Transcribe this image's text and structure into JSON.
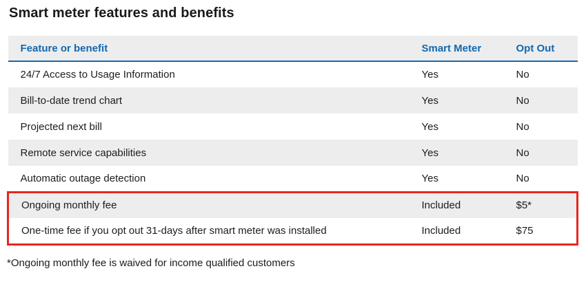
{
  "page": {
    "title": "Smart meter features and benefits",
    "footnote": "*Ongoing monthly fee is waived for income qualified customers"
  },
  "table": {
    "columns": [
      "Feature or benefit",
      "Smart Meter",
      "Opt Out"
    ],
    "rows": [
      {
        "feature": "24/7 Access to Usage Information",
        "smart_meter": "Yes",
        "opt_out": "No",
        "highlighted": false
      },
      {
        "feature": "Bill-to-date trend chart",
        "smart_meter": "Yes",
        "opt_out": "No",
        "highlighted": false
      },
      {
        "feature": "Projected next bill",
        "smart_meter": "Yes",
        "opt_out": "No",
        "highlighted": false
      },
      {
        "feature": "Remote service capabilities",
        "smart_meter": "Yes",
        "opt_out": "No",
        "highlighted": false
      },
      {
        "feature": "Automatic outage detection",
        "smart_meter": "Yes",
        "opt_out": "No",
        "highlighted": false
      },
      {
        "feature": "Ongoing monthly fee",
        "smart_meter": "Included",
        "opt_out": "$5*",
        "highlighted": true
      },
      {
        "feature": "One-time fee if you opt out 31-days after smart meter was installed",
        "smart_meter": "Included",
        "opt_out": "$75",
        "highlighted": true
      }
    ]
  },
  "colors": {
    "accent_blue": "#1268b1",
    "row_shade": "#ededed",
    "highlight_red": "#e8251c",
    "text": "#1c1c1c"
  }
}
